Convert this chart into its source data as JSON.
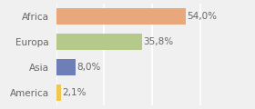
{
  "categories": [
    "America",
    "Asia",
    "Europa",
    "Africa"
  ],
  "values": [
    2.1,
    8.0,
    35.8,
    54.0
  ],
  "labels": [
    "2,1%",
    "8,0%",
    "35,8%",
    "54,0%"
  ],
  "bar_colors": [
    "#f0c850",
    "#6e7fb8",
    "#b5c98a",
    "#e8a87c"
  ],
  "background_color": "#f0f0f0",
  "xlim": [
    0,
    70
  ],
  "bar_height": 0.65,
  "label_fontsize": 7.5,
  "tick_fontsize": 7.5,
  "grid_color": "#ffffff",
  "label_color": "#666666",
  "tick_color": "#666666"
}
